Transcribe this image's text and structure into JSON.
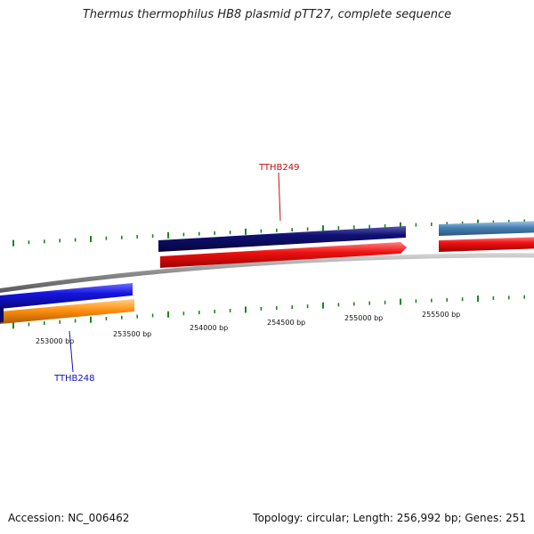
{
  "header": {
    "title": "Thermus thermophilus HB8 plasmid pTT27, complete sequence"
  },
  "footer": {
    "accession": "Accession: NC_006462",
    "summary": "Topology: circular; Length: 256,992 bp; Genes: 251"
  },
  "ruler": {
    "labels": [
      "253000 bp",
      "253500 bp",
      "254000 bp",
      "254500 bp",
      "255000 bp",
      "255500 bp"
    ],
    "tick_color": "#1a8a1a",
    "backbone_color": "#8a8a8a"
  },
  "genes": [
    {
      "name": "TTHB248",
      "label_color": "#1010c8"
    },
    {
      "name": "TTHB249",
      "label_color": "#c01010"
    }
  ],
  "features": {
    "gene_forward_color": "#0a0a6e",
    "cds_forward_color": "#ee1111",
    "gene_reverse_color": "#1111dd",
    "cds_reverse_color": "#ff8c00",
    "gene_next_color": "#4682b4"
  }
}
